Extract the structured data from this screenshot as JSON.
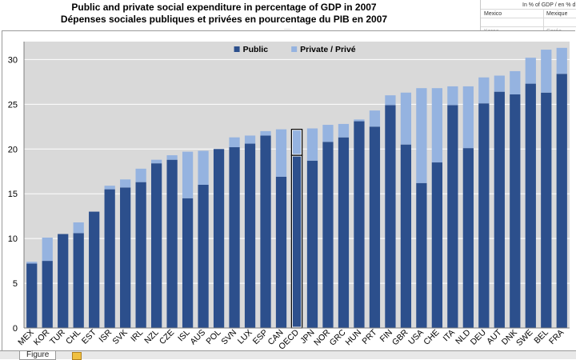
{
  "titles": {
    "line1": "Public and private social expenditure in percentage of GDP in 2007",
    "line2": "Dépenses sociales publiques et privées en pourcentage du PIB en 2007"
  },
  "side_table": {
    "header": "In % of GDP / en % d",
    "row1_left": "Mexico",
    "row1_right": "Mexique",
    "row2_left": "Korea",
    "row2_right": "Corée"
  },
  "tab_label": "Figure",
  "chart_data": {
    "type": "bar",
    "stacked": true,
    "categories": [
      "MEX",
      "KOR",
      "TUR",
      "CHL",
      "EST",
      "ISR",
      "SVK",
      "IRL",
      "NZL",
      "CZE",
      "ISL",
      "AUS",
      "POL",
      "SVN",
      "LUX",
      "ESP",
      "CAN",
      "OECD",
      "JPN",
      "NOR",
      "GRC",
      "HUN",
      "PRT",
      "FIN",
      "GBR",
      "USA",
      "CHE",
      "ITA",
      "NLD",
      "DEU",
      "AUT",
      "DNK",
      "SWE",
      "BEL",
      "FRA"
    ],
    "series": [
      {
        "name": "Public",
        "color": "#2c4f8c",
        "values": [
          7.2,
          7.5,
          10.5,
          10.6,
          13.0,
          15.5,
          15.7,
          16.3,
          18.4,
          18.8,
          14.5,
          16.0,
          20.0,
          20.2,
          20.6,
          21.5,
          16.9,
          19.3,
          18.7,
          20.8,
          21.3,
          23.1,
          22.5,
          24.9,
          20.5,
          16.2,
          18.5,
          24.9,
          20.1,
          25.1,
          26.4,
          26.1,
          27.3,
          26.3,
          28.4
        ]
      },
      {
        "name": "Private / Privé",
        "color": "#95b3e0",
        "values": [
          0.2,
          2.6,
          0.0,
          1.2,
          0.0,
          0.4,
          0.9,
          1.5,
          0.4,
          0.5,
          5.2,
          3.8,
          0.0,
          1.1,
          0.9,
          0.5,
          5.3,
          2.9,
          3.6,
          1.9,
          1.5,
          0.2,
          1.8,
          1.1,
          5.8,
          10.6,
          8.3,
          2.1,
          6.9,
          2.9,
          1.8,
          2.6,
          2.9,
          4.8,
          2.9
        ]
      }
    ],
    "highlight_category": "OECD",
    "ylim": [
      0,
      32
    ],
    "yticks": [
      "0",
      "5",
      "10",
      "15",
      "20",
      "25",
      "30"
    ],
    "grid": true,
    "legend_position": "top-center",
    "plot_background": "#d9d9d9"
  }
}
